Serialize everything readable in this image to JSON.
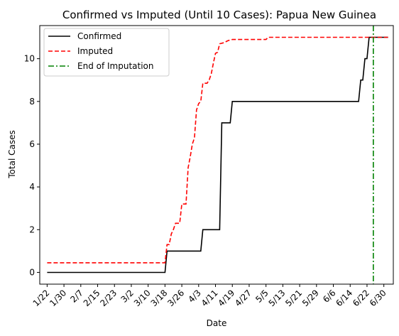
{
  "chart_data": {
    "type": "line",
    "title": "Confirmed vs Imputed (Until 10 Cases): Papua New Guinea",
    "xlabel": "Date",
    "ylabel": "Total Cases",
    "x_tick_labels": [
      "1/22",
      "1/30",
      "2/7",
      "2/15",
      "2/23",
      "3/2",
      "3/10",
      "3/18",
      "3/26",
      "4/3",
      "4/11",
      "4/19",
      "4/27",
      "5/5",
      "5/13",
      "5/21",
      "5/29",
      "6/6",
      "6/14",
      "6/22",
      "6/30"
    ],
    "y_ticks": [
      0,
      2,
      4,
      6,
      8,
      10
    ],
    "ylim": [
      -0.55,
      11.55
    ],
    "xlim_days": [
      -3.5,
      164.5
    ],
    "legend_position": "top-left",
    "grid": false,
    "series": [
      {
        "name": "Confirmed",
        "color": "#000000",
        "style": "solid",
        "points": [
          [
            0,
            0
          ],
          [
            56,
            0
          ],
          [
            57,
            1
          ],
          [
            73,
            1
          ],
          [
            74,
            2
          ],
          [
            82,
            2
          ],
          [
            83,
            7
          ],
          [
            87,
            7
          ],
          [
            88,
            8
          ],
          [
            148,
            8
          ],
          [
            149,
            9
          ],
          [
            150,
            9
          ],
          [
            151,
            10
          ],
          [
            152,
            10
          ],
          [
            153,
            11
          ],
          [
            162,
            11
          ]
        ]
      },
      {
        "name": "Imputed",
        "color": "#ff0000",
        "style": "dashed",
        "points": [
          [
            0,
            0.45
          ],
          [
            56,
            0.45
          ],
          [
            57,
            1.3
          ],
          [
            58,
            1.3
          ],
          [
            59,
            1.8
          ],
          [
            60,
            2.0
          ],
          [
            61,
            2.3
          ],
          [
            63,
            2.3
          ],
          [
            64,
            3.2
          ],
          [
            66,
            3.2
          ],
          [
            67,
            4.9
          ],
          [
            68,
            5.4
          ],
          [
            69,
            6.0
          ],
          [
            70,
            6.3
          ],
          [
            71,
            7.6
          ],
          [
            72,
            7.9
          ],
          [
            73,
            8.0
          ],
          [
            74,
            8.85
          ],
          [
            76,
            8.85
          ],
          [
            77,
            9.0
          ],
          [
            78,
            9.3
          ],
          [
            79,
            9.8
          ],
          [
            80,
            10.25
          ],
          [
            81,
            10.3
          ],
          [
            82,
            10.7
          ],
          [
            84,
            10.75
          ],
          [
            86,
            10.85
          ],
          [
            88,
            10.9
          ],
          [
            90,
            10.9
          ],
          [
            104,
            10.9
          ],
          [
            105,
            11.0
          ],
          [
            162,
            11.0
          ]
        ]
      }
    ],
    "vlines": [
      {
        "name": "End of Imputation",
        "color": "#008000",
        "style": "dashdot",
        "x": 155
      }
    ]
  }
}
